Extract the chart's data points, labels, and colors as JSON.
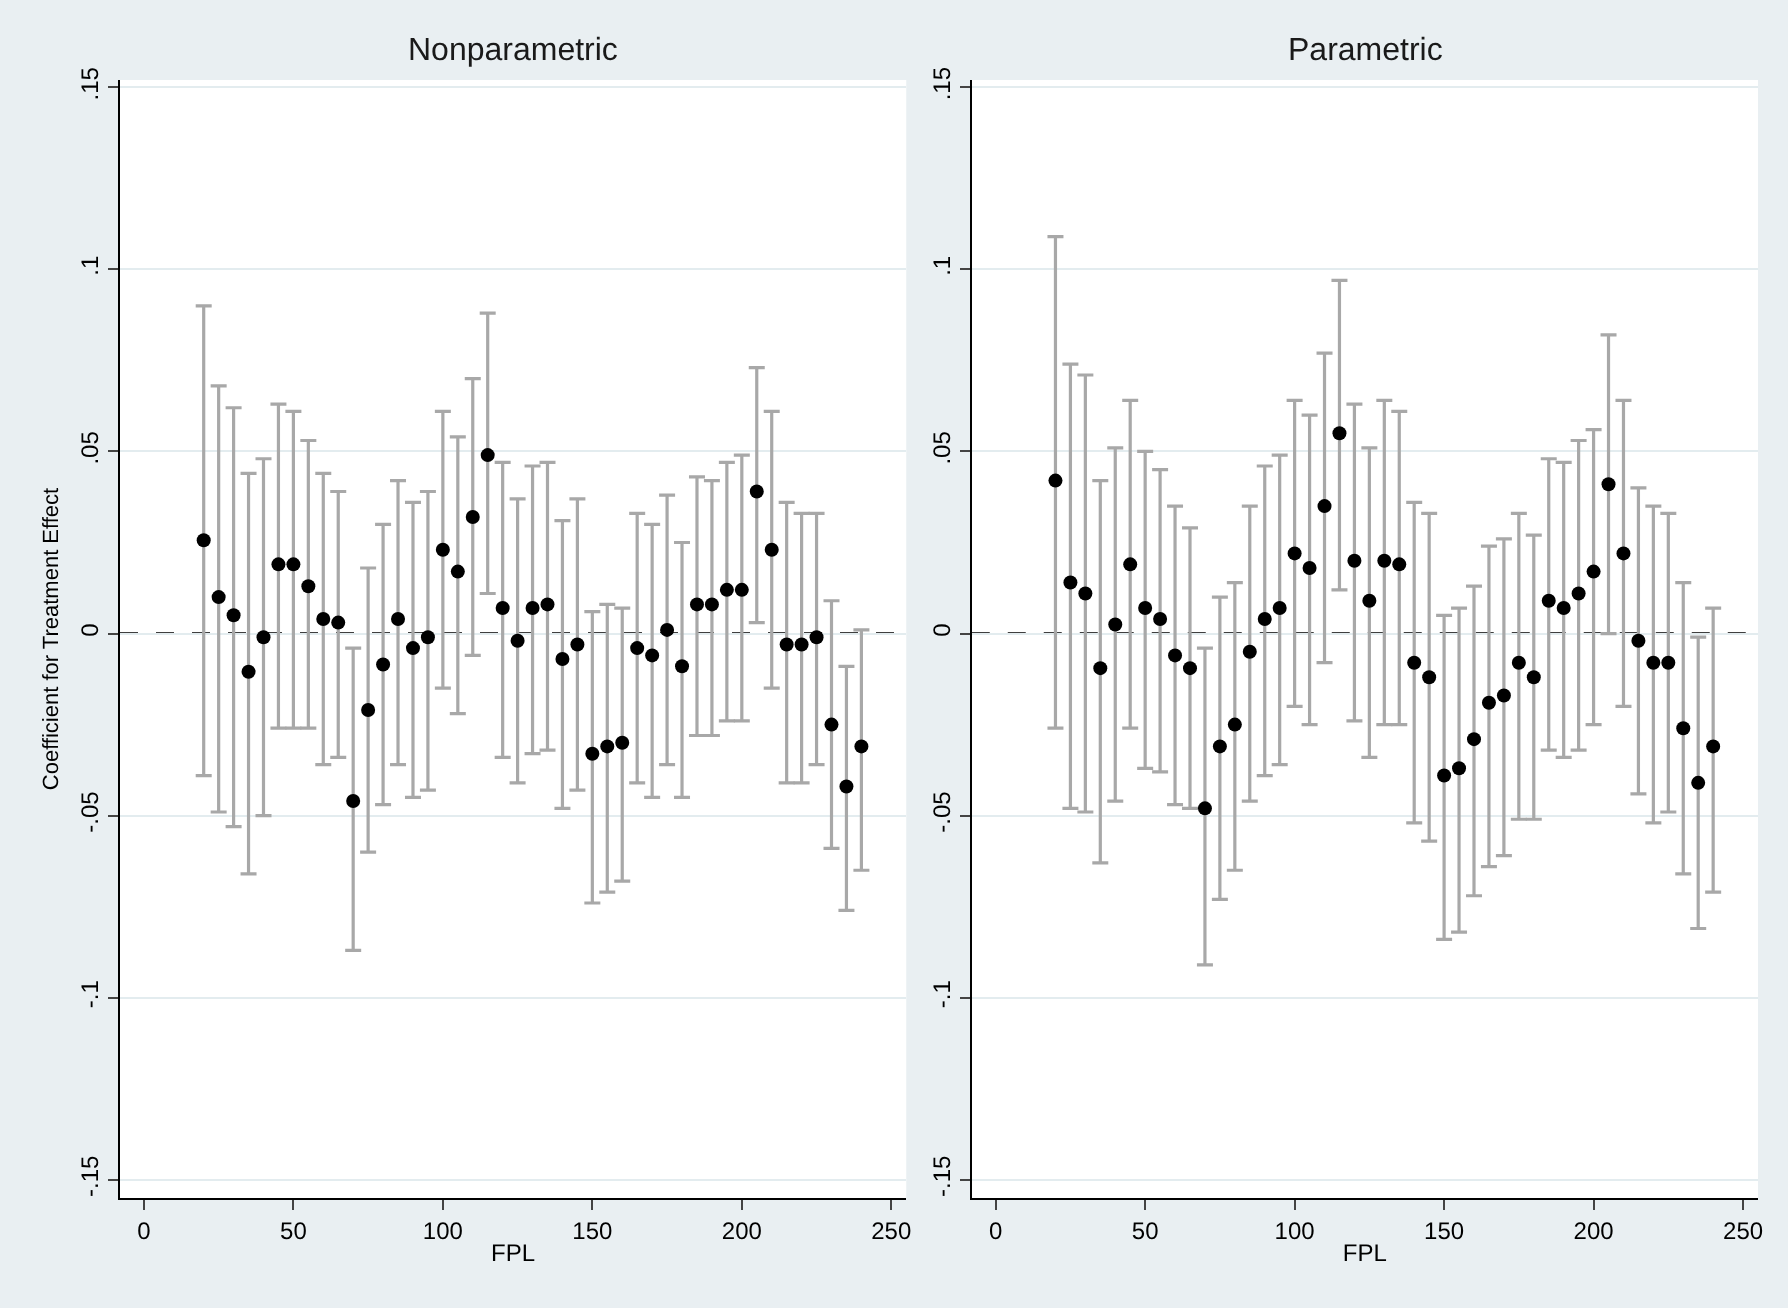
{
  "chart_data": [
    {
      "type": "scatter",
      "title": "Nonparametric",
      "xlabel": "FPL",
      "ylabel": "Coefficient for Treatment Effect",
      "marker": "circle",
      "grid": "y",
      "xlim": [
        -8,
        255
      ],
      "ylim": [
        -0.155,
        0.152
      ],
      "xticks": [
        0,
        50,
        100,
        150,
        200,
        250
      ],
      "yticks": [
        {
          "value": -0.15,
          "label": "-.15"
        },
        {
          "value": -0.1,
          "label": "-.1"
        },
        {
          "value": -0.05,
          "label": "-.05"
        },
        0,
        {
          "value": 0.05,
          "label": ".05"
        },
        {
          "value": 0.1,
          "label": ".1"
        },
        {
          "value": 0.15,
          "label": ".15"
        }
      ],
      "ref_lines": [
        {
          "axis": "y",
          "value": 0,
          "label": null,
          "color": "#000000",
          "line_style": "dashed"
        }
      ],
      "x": [
        20,
        25,
        30,
        35,
        40,
        45,
        50,
        55,
        60,
        65,
        70,
        75,
        80,
        85,
        90,
        95,
        100,
        105,
        110,
        115,
        120,
        125,
        130,
        135,
        140,
        145,
        150,
        155,
        160,
        165,
        170,
        175,
        180,
        185,
        190,
        195,
        200,
        205,
        210,
        215,
        220,
        225,
        230,
        235,
        240
      ],
      "series": [
        {
          "color": "#000000",
          "values": [
            0.0256,
            0.01,
            0.005,
            -0.0105,
            -0.001,
            0.019,
            0.019,
            0.013,
            0.004,
            0.003,
            -0.046,
            -0.021,
            -0.0085,
            0.004,
            -0.004,
            -0.001,
            0.023,
            0.017,
            0.032,
            0.049,
            0.007,
            -0.002,
            0.007,
            0.008,
            -0.007,
            -0.003,
            -0.033,
            -0.031,
            -0.03,
            -0.004,
            -0.006,
            0.001,
            -0.009,
            0.008,
            0.008,
            0.012,
            0.012,
            0.039,
            0.023,
            -0.003,
            -0.003,
            -0.001,
            -0.025,
            -0.042,
            -0.031
          ],
          "errors": [
            [
              -0.039,
              0.09
            ],
            [
              -0.049,
              0.068
            ],
            [
              -0.053,
              0.062
            ],
            [
              -0.066,
              0.044
            ],
            [
              -0.05,
              0.048
            ],
            [
              -0.026,
              0.063
            ],
            [
              -0.026,
              0.061
            ],
            [
              -0.026,
              0.053
            ],
            [
              -0.036,
              0.044
            ],
            [
              -0.034,
              0.039
            ],
            [
              -0.087,
              -0.004
            ],
            [
              -0.06,
              0.018
            ],
            [
              -0.047,
              0.03
            ],
            [
              -0.036,
              0.042
            ],
            [
              -0.045,
              0.036
            ],
            [
              -0.043,
              0.039
            ],
            [
              -0.015,
              0.061
            ],
            [
              -0.022,
              0.054
            ],
            [
              -0.006,
              0.07
            ],
            [
              0.011,
              0.088
            ],
            [
              -0.034,
              0.047
            ],
            [
              -0.041,
              0.037
            ],
            [
              -0.033,
              0.046
            ],
            [
              -0.032,
              0.047
            ],
            [
              -0.048,
              0.031
            ],
            [
              -0.043,
              0.037
            ],
            [
              -0.074,
              0.006
            ],
            [
              -0.071,
              0.008
            ],
            [
              -0.068,
              0.007
            ],
            [
              -0.041,
              0.033
            ],
            [
              -0.045,
              0.03
            ],
            [
              -0.036,
              0.038
            ],
            [
              -0.045,
              0.025
            ],
            [
              -0.028,
              0.043
            ],
            [
              -0.028,
              0.042
            ],
            [
              -0.024,
              0.047
            ],
            [
              -0.024,
              0.049
            ],
            [
              0.003,
              0.073
            ],
            [
              -0.015,
              0.061
            ],
            [
              -0.041,
              0.036
            ],
            [
              -0.041,
              0.033
            ],
            [
              -0.036,
              0.033
            ],
            [
              -0.059,
              0.009
            ],
            [
              -0.076,
              -0.009
            ],
            [
              -0.065,
              0.001
            ]
          ]
        }
      ]
    },
    {
      "type": "scatter",
      "title": "Parametric",
      "xlabel": "FPL",
      "marker": "circle",
      "grid": "y",
      "xlim": [
        -8,
        255
      ],
      "ylim": [
        -0.155,
        0.152
      ],
      "xticks": [
        0,
        50,
        100,
        150,
        200,
        250
      ],
      "yticks": [
        {
          "value": -0.15,
          "label": "-.15"
        },
        {
          "value": -0.1,
          "label": "-.1"
        },
        {
          "value": -0.05,
          "label": "-.05"
        },
        0,
        {
          "value": 0.05,
          "label": ".05"
        },
        {
          "value": 0.1,
          "label": ".1"
        },
        {
          "value": 0.15,
          "label": ".15"
        }
      ],
      "ref_lines": [
        {
          "axis": "y",
          "value": 0,
          "label": null,
          "color": "#000000",
          "line_style": "dashed"
        }
      ],
      "x": [
        20,
        25,
        30,
        35,
        40,
        45,
        50,
        55,
        60,
        65,
        70,
        75,
        80,
        85,
        90,
        95,
        100,
        105,
        110,
        115,
        120,
        125,
        130,
        135,
        140,
        145,
        150,
        155,
        160,
        165,
        170,
        175,
        180,
        185,
        190,
        195,
        200,
        205,
        210,
        215,
        220,
        225,
        230,
        235,
        240
      ],
      "series": [
        {
          "color": "#000000",
          "values": [
            0.042,
            0.014,
            0.011,
            -0.0095,
            0.0025,
            0.019,
            0.007,
            0.004,
            -0.006,
            -0.0095,
            -0.048,
            -0.031,
            -0.025,
            -0.005,
            0.004,
            0.007,
            0.022,
            0.018,
            0.035,
            0.055,
            0.02,
            0.009,
            0.02,
            0.019,
            -0.008,
            -0.012,
            -0.039,
            -0.037,
            -0.029,
            -0.019,
            -0.017,
            -0.008,
            -0.012,
            0.009,
            0.007,
            0.011,
            0.017,
            0.041,
            0.022,
            -0.002,
            -0.008,
            -0.008,
            -0.026,
            -0.041,
            -0.031
          ],
          "errors": [
            [
              -0.026,
              0.109
            ],
            [
              -0.048,
              0.074
            ],
            [
              -0.049,
              0.071
            ],
            [
              -0.063,
              0.042
            ],
            [
              -0.046,
              0.051
            ],
            [
              -0.026,
              0.064
            ],
            [
              -0.037,
              0.05
            ],
            [
              -0.038,
              0.045
            ],
            [
              -0.047,
              0.035
            ],
            [
              -0.048,
              0.029
            ],
            [
              -0.091,
              -0.004
            ],
            [
              -0.073,
              0.01
            ],
            [
              -0.065,
              0.014
            ],
            [
              -0.046,
              0.035
            ],
            [
              -0.039,
              0.046
            ],
            [
              -0.036,
              0.049
            ],
            [
              -0.02,
              0.064
            ],
            [
              -0.025,
              0.06
            ],
            [
              -0.008,
              0.077
            ],
            [
              0.012,
              0.097
            ],
            [
              -0.024,
              0.063
            ],
            [
              -0.034,
              0.051
            ],
            [
              -0.025,
              0.064
            ],
            [
              -0.025,
              0.061
            ],
            [
              -0.052,
              0.036
            ],
            [
              -0.057,
              0.033
            ],
            [
              -0.084,
              0.005
            ],
            [
              -0.082,
              0.007
            ],
            [
              -0.072,
              0.013
            ],
            [
              -0.064,
              0.024
            ],
            [
              -0.061,
              0.026
            ],
            [
              -0.051,
              0.033
            ],
            [
              -0.051,
              0.027
            ],
            [
              -0.032,
              0.048
            ],
            [
              -0.034,
              0.047
            ],
            [
              -0.032,
              0.053
            ],
            [
              -0.025,
              0.056
            ],
            [
              0.0,
              0.082
            ],
            [
              -0.02,
              0.064
            ],
            [
              -0.044,
              0.04
            ],
            [
              -0.052,
              0.035
            ],
            [
              -0.049,
              0.033
            ],
            [
              -0.066,
              0.014
            ],
            [
              -0.081,
              -0.001
            ],
            [
              -0.071,
              0.007
            ]
          ]
        }
      ]
    }
  ]
}
